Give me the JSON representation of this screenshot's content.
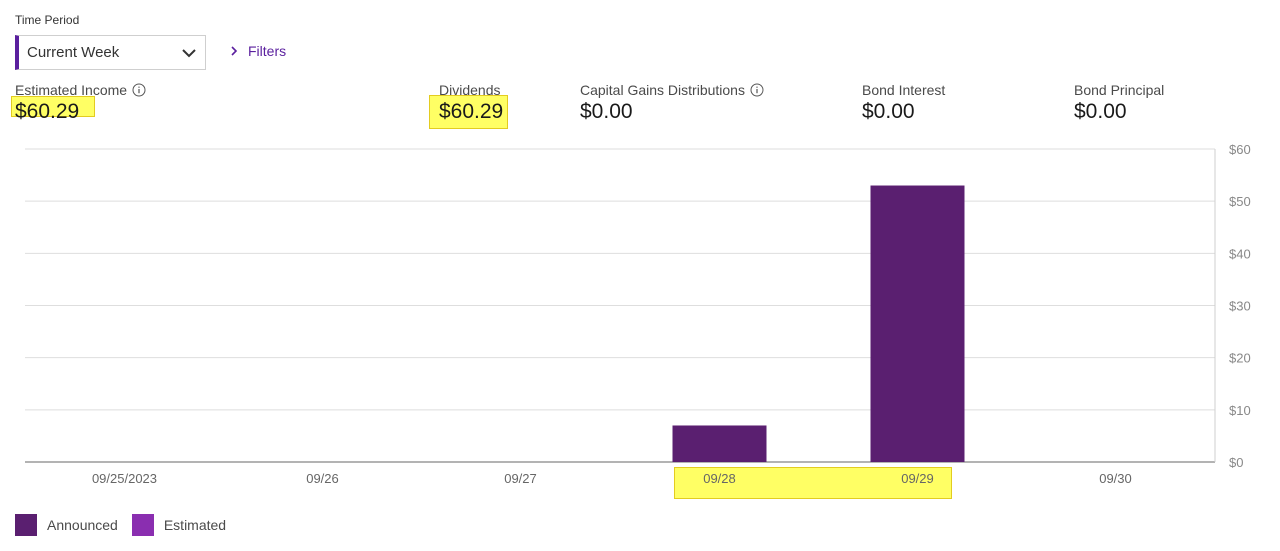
{
  "time_period": {
    "label": "Time Period",
    "selected": "Current Week"
  },
  "filters": {
    "label": "Filters"
  },
  "metrics": [
    {
      "label": "Estimated Income",
      "value": "$60.29",
      "info": true
    },
    {
      "label": "Dividends",
      "value": "$60.29",
      "info": false
    },
    {
      "label": "Capital Gains Distributions",
      "value": "$0.00",
      "info": true
    },
    {
      "label": "Bond Interest",
      "value": "$0.00",
      "info": false
    },
    {
      "label": "Bond Principal",
      "value": "$0.00",
      "info": false
    }
  ],
  "colors": {
    "announced": "#5a1f70",
    "estimated": "#8a2eb0",
    "accent": "#5a1f9e",
    "highlight": "#ffff40"
  },
  "legend": [
    {
      "label": "Announced",
      "color": "#5a1f70"
    },
    {
      "label": "Estimated",
      "color": "#8a2eb0"
    }
  ],
  "chart_data": {
    "type": "bar",
    "title": "",
    "xlabel": "",
    "ylabel": "",
    "categories": [
      "09/25/2023",
      "09/26",
      "09/27",
      "09/28",
      "09/29",
      "09/30"
    ],
    "series": [
      {
        "name": "Announced",
        "values": [
          0,
          0,
          0,
          7,
          53,
          0
        ]
      },
      {
        "name": "Estimated",
        "values": [
          0,
          0,
          0,
          0,
          0,
          0
        ]
      }
    ],
    "ylim": [
      0,
      60
    ],
    "yticks": [
      0,
      10,
      20,
      30,
      40,
      50,
      60
    ],
    "ytick_labels": [
      "$0",
      "$10",
      "$20",
      "$30",
      "$40",
      "$50",
      "$60"
    ],
    "y_axis_position": "right",
    "grid": true,
    "legend_position": "bottom-left"
  }
}
